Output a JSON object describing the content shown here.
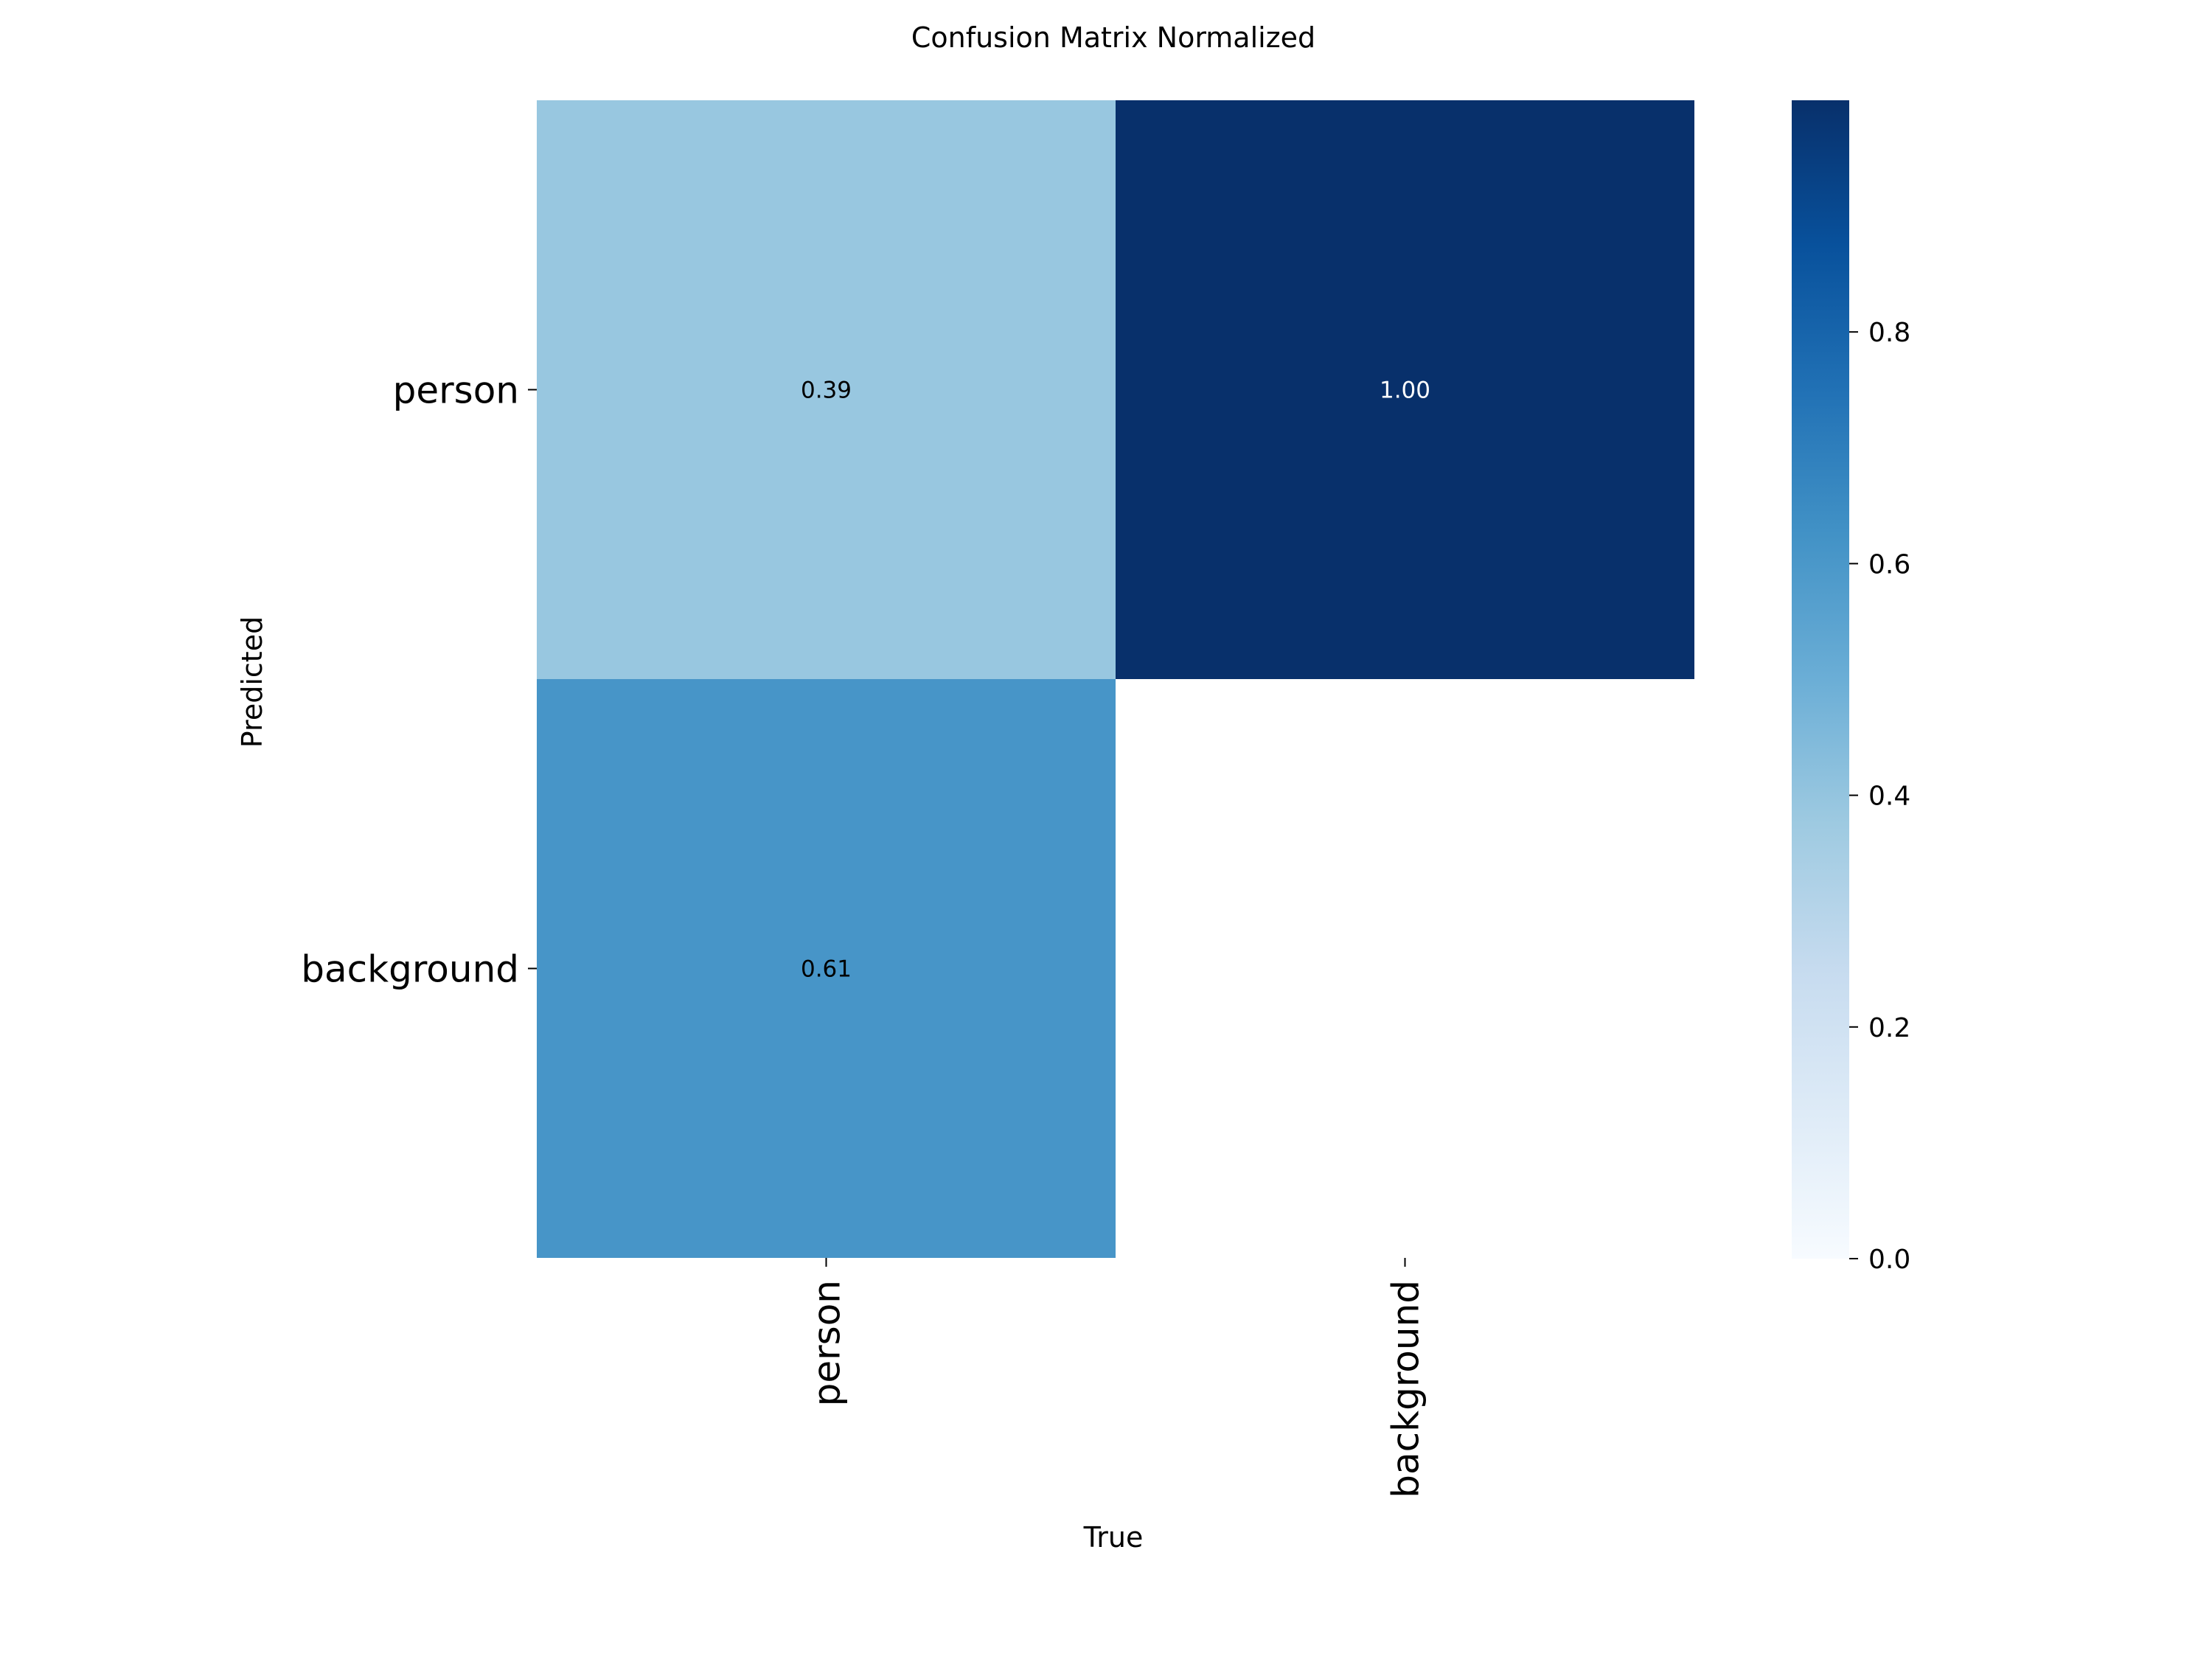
{
  "chart_data": {
    "type": "heatmap",
    "title": "Confusion Matrix Normalized",
    "xlabel": "True",
    "ylabel": "Predicted",
    "x_categories": [
      "person",
      "background"
    ],
    "y_categories": [
      "person",
      "background"
    ],
    "cells": [
      {
        "row": 0,
        "col": 0,
        "value": 0.39,
        "label": "0.39"
      },
      {
        "row": 0,
        "col": 1,
        "value": 1.0,
        "label": "1.00"
      },
      {
        "row": 1,
        "col": 0,
        "value": 0.61,
        "label": "0.61"
      },
      {
        "row": 1,
        "col": 1,
        "value": null,
        "label": ""
      }
    ],
    "colorbar": {
      "range": [
        0,
        1
      ],
      "ticks": [
        0.0,
        0.2,
        0.4,
        0.6,
        0.8
      ],
      "tick_labels": [
        "0.0",
        "0.2",
        "0.4",
        "0.6",
        "0.8"
      ],
      "colormap": "Blues",
      "colors": [
        "#f7fbff",
        "#deebf7",
        "#c6dbef",
        "#9ecae1",
        "#6baed6",
        "#4292c6",
        "#2171b5",
        "#08519c",
        "#08306b"
      ]
    }
  }
}
